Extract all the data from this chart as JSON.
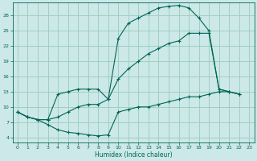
{
  "xlabel": "Humidex (Indice chaleur)",
  "bg_color": "#cce8e8",
  "grid_color": "#99ccbb",
  "line_color": "#006655",
  "xlim": [
    -0.5,
    23.5
  ],
  "ylim": [
    3.0,
    30.5
  ],
  "xticks": [
    0,
    1,
    2,
    3,
    4,
    5,
    6,
    7,
    8,
    9,
    10,
    11,
    12,
    13,
    14,
    15,
    16,
    17,
    18,
    19,
    20,
    21,
    22,
    23
  ],
  "yticks": [
    4,
    7,
    10,
    13,
    16,
    19,
    22,
    25,
    28
  ],
  "curve_max": [
    [
      0,
      9.0
    ],
    [
      1,
      8.0
    ],
    [
      2,
      7.5
    ],
    [
      3,
      7.5
    ],
    [
      4,
      12.5
    ],
    [
      5,
      13.0
    ],
    [
      6,
      13.5
    ],
    [
      7,
      13.5
    ],
    [
      8,
      13.5
    ],
    [
      9,
      11.5
    ],
    [
      10,
      23.5
    ],
    [
      11,
      26.5
    ],
    [
      12,
      27.5
    ],
    [
      13,
      28.5
    ],
    [
      14,
      29.5
    ],
    [
      15,
      29.8
    ],
    [
      16,
      30.0
    ],
    [
      17,
      29.5
    ],
    [
      18,
      27.5
    ],
    [
      19,
      25.0
    ],
    [
      20,
      13.5
    ],
    [
      21,
      13.0
    ],
    [
      22,
      12.5
    ]
  ],
  "curve_mid": [
    [
      0,
      9.0
    ],
    [
      1,
      8.0
    ],
    [
      2,
      7.5
    ],
    [
      3,
      7.5
    ],
    [
      4,
      8.0
    ],
    [
      5,
      9.0
    ],
    [
      6,
      10.0
    ],
    [
      7,
      10.5
    ],
    [
      8,
      10.5
    ],
    [
      9,
      11.5
    ],
    [
      10,
      15.5
    ],
    [
      11,
      17.5
    ],
    [
      12,
      19.0
    ],
    [
      13,
      20.5
    ],
    [
      14,
      21.5
    ],
    [
      15,
      22.5
    ],
    [
      16,
      23.0
    ],
    [
      17,
      24.5
    ],
    [
      18,
      24.5
    ],
    [
      19,
      24.5
    ],
    [
      20,
      13.5
    ],
    [
      21,
      13.0
    ],
    [
      22,
      12.5
    ]
  ],
  "curve_min": [
    [
      0,
      9.0
    ],
    [
      1,
      8.0
    ],
    [
      2,
      7.5
    ],
    [
      3,
      6.5
    ],
    [
      4,
      5.5
    ],
    [
      5,
      5.0
    ],
    [
      6,
      4.8
    ],
    [
      7,
      4.5
    ],
    [
      8,
      4.3
    ],
    [
      9,
      4.5
    ],
    [
      10,
      9.0
    ],
    [
      11,
      9.5
    ],
    [
      12,
      10.0
    ],
    [
      13,
      10.0
    ],
    [
      14,
      10.5
    ],
    [
      15,
      11.0
    ],
    [
      16,
      11.5
    ],
    [
      17,
      12.0
    ],
    [
      18,
      12.0
    ],
    [
      19,
      12.5
    ],
    [
      20,
      13.0
    ],
    [
      21,
      13.0
    ],
    [
      22,
      12.5
    ]
  ]
}
